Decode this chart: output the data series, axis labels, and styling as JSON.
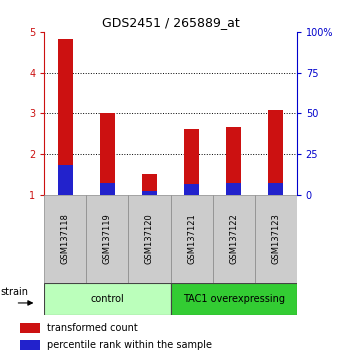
{
  "title": "GDS2451 / 265889_at",
  "samples": [
    "GSM137118",
    "GSM137119",
    "GSM137120",
    "GSM137121",
    "GSM137122",
    "GSM137123"
  ],
  "red_values": [
    4.82,
    3.0,
    1.5,
    2.62,
    2.67,
    3.07
  ],
  "blue_values": [
    1.72,
    1.28,
    1.08,
    1.26,
    1.28,
    1.28
  ],
  "ylim_left": [
    1,
    5
  ],
  "ylim_right": [
    0,
    100
  ],
  "yticks_left": [
    1,
    2,
    3,
    4,
    5
  ],
  "yticks_right": [
    0,
    25,
    50,
    75,
    100
  ],
  "groups": [
    {
      "label": "control",
      "start": 0,
      "end": 3,
      "color": "#bbffbb"
    },
    {
      "label": "TAC1 overexpressing",
      "start": 3,
      "end": 6,
      "color": "#33cc33"
    }
  ],
  "bar_width": 0.35,
  "red_color": "#cc1111",
  "blue_color": "#2222cc",
  "bg_color": "#ffffff",
  "tick_label_color_left": "#cc1111",
  "tick_label_color_right": "#0000cc",
  "sample_area_color": "#cccccc",
  "legend_red_label": "transformed count",
  "legend_blue_label": "percentile rank within the sample",
  "strain_label": "strain",
  "figure_width": 3.41,
  "figure_height": 3.54,
  "dpi": 100
}
